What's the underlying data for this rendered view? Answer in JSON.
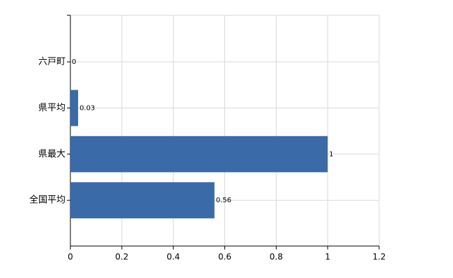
{
  "chart_data": {
    "type": "bar",
    "orientation": "horizontal",
    "categories": [
      "六戸町",
      "県平均",
      "県最大",
      "全国平均"
    ],
    "values": [
      0,
      0.03,
      1,
      0.56
    ],
    "color": "#3a6aa8",
    "xlim": [
      0,
      1.2
    ],
    "xticks": [
      0,
      0.2,
      0.4,
      0.6,
      0.8,
      1,
      1.2
    ],
    "grid": true
  }
}
